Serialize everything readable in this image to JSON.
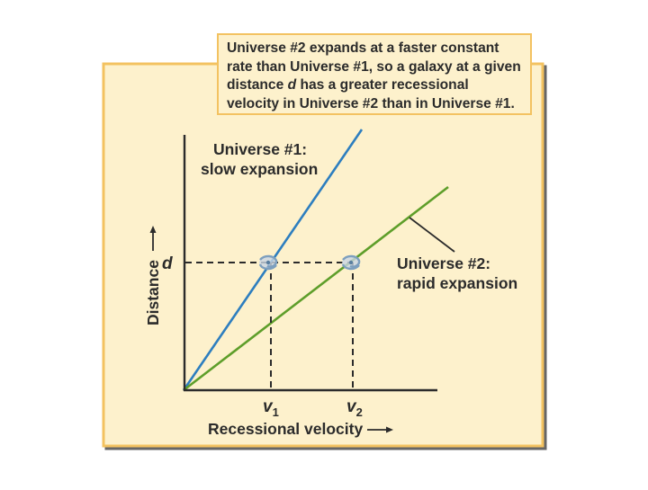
{
  "caption": {
    "part1": "Universe #2 expands at a faster constant rate than Universe #1, so a galaxy at a given distance ",
    "italic": "d",
    "part2": " has a greater recessional velocity in Universe #2 than in Universe #1."
  },
  "labels": {
    "universe1_line1": "Universe #1:",
    "universe1_line2": "slow expansion",
    "universe2_line1": "Universe #2:",
    "universe2_line2": "rapid expansion",
    "d_marker": "d",
    "v1_letter": "v",
    "v1_sub": "1",
    "v2_letter": "v",
    "v2_sub": "2"
  },
  "axes": {
    "y_label": "Distance",
    "x_label": "Recessional velocity"
  },
  "colors": {
    "panel_bg": "#fdf1cc",
    "panel_border": "#f3c261",
    "universe1_line": "#2d7ebf",
    "universe2_line": "#5e9e2a",
    "text": "#2b2b2b",
    "galaxy": "#7d9fbe"
  },
  "icons": [
    "galaxy-icon",
    "arrow-right-icon",
    "arrow-up-icon"
  ]
}
